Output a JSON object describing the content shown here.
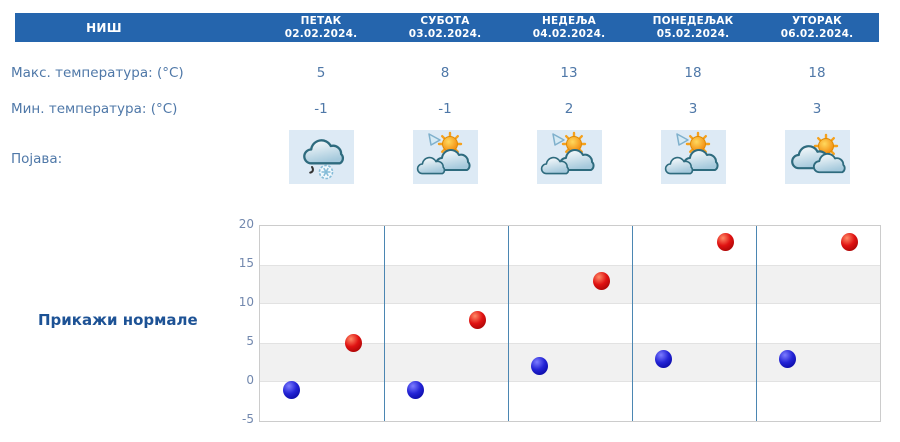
{
  "table": {
    "station": "НИШ",
    "row_labels": {
      "max": "Макс. температура: (°C)",
      "min": "Мин. температура: (°C)",
      "phenomena": "Појава:"
    },
    "days": [
      {
        "name": "ПЕТАК",
        "date": "02.02.2024.",
        "max": "5",
        "min": "-1",
        "icon": "sleet-cloud"
      },
      {
        "name": "СУБОТА",
        "date": "03.02.2024.",
        "max": "8",
        "min": "-1",
        "icon": "sun-clouds"
      },
      {
        "name": "НЕДЕЉА",
        "date": "04.02.2024.",
        "max": "13",
        "min": "2",
        "icon": "sun-clouds"
      },
      {
        "name": "ПОНЕДЕЉАК",
        "date": "05.02.2024.",
        "max": "18",
        "min": "3",
        "icon": "sun-clouds"
      },
      {
        "name": "УТОРАК",
        "date": "06.02.2024.",
        "max": "18",
        "min": "3",
        "icon": "sun-behind-cloud"
      }
    ]
  },
  "normals_link_label": "Прикажи нормале",
  "chart_data": {
    "type": "scatter",
    "categories": [
      "02.02.2024.",
      "03.02.2024.",
      "04.02.2024.",
      "05.02.2024.",
      "06.02.2024."
    ],
    "series": [
      {
        "name": "Макс. температура (°C)",
        "color": "#e01212",
        "values": [
          5,
          8,
          13,
          18,
          18
        ]
      },
      {
        "name": "Мин. температура (°C)",
        "color": "#2424d6",
        "values": [
          -1,
          -1,
          2,
          3,
          3
        ]
      }
    ],
    "ylim": [
      -5,
      20
    ],
    "yticks": [
      20,
      15,
      10,
      5,
      0,
      -5
    ],
    "grid": "horizontal-bands",
    "legend": "none",
    "title": "",
    "xlabel": "",
    "ylabel": ""
  },
  "colors": {
    "header_bg": "#2565ad",
    "header_text": "#ffffff",
    "table_text": "#4f78a8",
    "tick_text": "#7288ae",
    "link_text": "#1d5295",
    "day_separator": "#4b86b2",
    "band_gray": "#f1f1f1",
    "plot_border": "#cccccc",
    "icon_cell_bg": "#ddeaf5",
    "dot_max": "#e01212",
    "dot_min": "#2424d6"
  }
}
